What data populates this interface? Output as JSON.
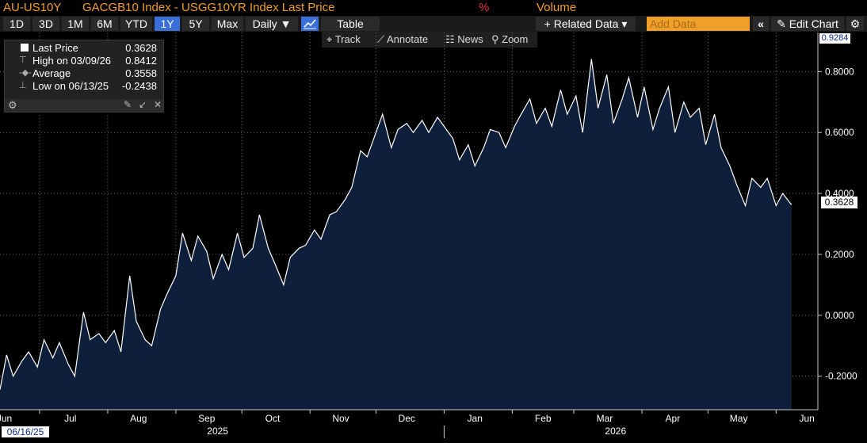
{
  "header": {
    "ticker": "AU-US10Y",
    "title": "GACGB10 Index - USGG10YR Index Last Price",
    "percent_symbol": "%",
    "volume_label": "Volume"
  },
  "toolbar": {
    "ranges": [
      "1D",
      "3D",
      "1M",
      "6M",
      "YTD",
      "1Y",
      "5Y",
      "Max"
    ],
    "active_range": "1Y",
    "frequency_label": "Daily ▼",
    "table_label": "Table",
    "related_data_label": "+ Related Data ▾",
    "add_data_placeholder": "Add Data",
    "collapse_label": "«",
    "edit_chart_label": "Edit Chart",
    "settings_icon": "gear-icon"
  },
  "toolbar2": {
    "track_label": "Track",
    "annotate_label": "Annotate",
    "news_label": "News",
    "zoom_label": "Zoom"
  },
  "legend": {
    "last_price_label": "Last Price",
    "last_price_value": "0.3628",
    "high_label": "High on 03/09/26",
    "high_value": "0.8412",
    "average_label": "Average",
    "average_value": "0.3558",
    "low_label": "Low on 06/13/25",
    "low_value": "-0.2438"
  },
  "axis_badges": {
    "top": "0.9284",
    "last": "0.3628",
    "start_date": "06/16/25"
  },
  "colors": {
    "line": "#ffffff",
    "fill": "#0d1f3a",
    "accent": "#f0a028",
    "active_button": "#3a6fd8",
    "grid": "#6a6a6a"
  },
  "chart_data": {
    "type": "area",
    "title": "GACGB10 Index - USGG10YR Index Last Price",
    "ylabel": "%",
    "ylim": [
      -0.31,
      0.9284
    ],
    "yticks": [
      -0.2,
      0.0,
      0.2,
      0.4,
      0.6,
      0.8
    ],
    "ytick_labels": [
      "-0.2000",
      "0.0000",
      "0.2000",
      "0.4000",
      "0.6000",
      "0.8000"
    ],
    "x_start": "2025-06-13",
    "x_end": "2026-06-20",
    "month_labels": [
      {
        "date": "2025-06-15",
        "label": "Jun"
      },
      {
        "date": "2025-07-15",
        "label": "Jul"
      },
      {
        "date": "2025-08-15",
        "label": "Aug"
      },
      {
        "date": "2025-09-15",
        "label": "Sep"
      },
      {
        "date": "2025-10-15",
        "label": "Oct"
      },
      {
        "date": "2025-11-15",
        "label": "Nov"
      },
      {
        "date": "2025-12-15",
        "label": "Dec"
      },
      {
        "date": "2026-01-15",
        "label": "Jan"
      },
      {
        "date": "2026-02-15",
        "label": "Feb"
      },
      {
        "date": "2026-03-15",
        "label": "Mar"
      },
      {
        "date": "2026-04-15",
        "label": "Apr"
      },
      {
        "date": "2026-05-15",
        "label": "May"
      },
      {
        "date": "2026-06-15",
        "label": "Jun"
      }
    ],
    "month_boundaries": [
      "2025-07-01",
      "2025-08-01",
      "2025-09-01",
      "2025-10-01",
      "2025-11-01",
      "2025-12-01",
      "2026-01-01",
      "2026-02-01",
      "2026-03-01",
      "2026-04-01",
      "2026-05-01",
      "2026-06-01"
    ],
    "year_labels": [
      {
        "date": "2025-09-20",
        "label": "2025"
      },
      {
        "date": "2026-03-20",
        "label": "2026"
      }
    ],
    "series": [
      {
        "values": [
          [
            "2025-06-13",
            -0.2438
          ],
          [
            "2025-06-16",
            -0.13
          ],
          [
            "2025-06-19",
            -0.2
          ],
          [
            "2025-06-23",
            -0.15
          ],
          [
            "2025-06-26",
            -0.12
          ],
          [
            "2025-06-30",
            -0.17
          ],
          [
            "2025-07-03",
            -0.08
          ],
          [
            "2025-07-07",
            -0.14
          ],
          [
            "2025-07-10",
            -0.09
          ],
          [
            "2025-07-14",
            -0.16
          ],
          [
            "2025-07-17",
            -0.2
          ],
          [
            "2025-07-21",
            0.01
          ],
          [
            "2025-07-24",
            -0.08
          ],
          [
            "2025-07-28",
            -0.06
          ],
          [
            "2025-07-31",
            -0.09
          ],
          [
            "2025-08-04",
            -0.05
          ],
          [
            "2025-08-07",
            -0.12
          ],
          [
            "2025-08-11",
            0.13
          ],
          [
            "2025-08-14",
            -0.02
          ],
          [
            "2025-08-18",
            -0.08
          ],
          [
            "2025-08-21",
            -0.1
          ],
          [
            "2025-08-25",
            0.02
          ],
          [
            "2025-08-28",
            0.07
          ],
          [
            "2025-09-01",
            0.13
          ],
          [
            "2025-09-04",
            0.27
          ],
          [
            "2025-09-08",
            0.18
          ],
          [
            "2025-09-11",
            0.26
          ],
          [
            "2025-09-15",
            0.21
          ],
          [
            "2025-09-18",
            0.12
          ],
          [
            "2025-09-22",
            0.2
          ],
          [
            "2025-09-25",
            0.15
          ],
          [
            "2025-09-29",
            0.27
          ],
          [
            "2025-10-02",
            0.19
          ],
          [
            "2025-10-06",
            0.22
          ],
          [
            "2025-10-09",
            0.33
          ],
          [
            "2025-10-13",
            0.22
          ],
          [
            "2025-10-16",
            0.17
          ],
          [
            "2025-10-20",
            0.1
          ],
          [
            "2025-10-23",
            0.19
          ],
          [
            "2025-10-27",
            0.22
          ],
          [
            "2025-10-30",
            0.23
          ],
          [
            "2025-11-03",
            0.28
          ],
          [
            "2025-11-06",
            0.25
          ],
          [
            "2025-11-10",
            0.33
          ],
          [
            "2025-11-13",
            0.34
          ],
          [
            "2025-11-17",
            0.38
          ],
          [
            "2025-11-20",
            0.42
          ],
          [
            "2025-11-24",
            0.54
          ],
          [
            "2025-11-27",
            0.52
          ],
          [
            "2025-12-01",
            0.6
          ],
          [
            "2025-12-04",
            0.66
          ],
          [
            "2025-12-08",
            0.55
          ],
          [
            "2025-12-11",
            0.61
          ],
          [
            "2025-12-15",
            0.63
          ],
          [
            "2025-12-18",
            0.6
          ],
          [
            "2025-12-22",
            0.64
          ],
          [
            "2025-12-25",
            0.6
          ],
          [
            "2025-12-29",
            0.65
          ],
          [
            "2026-01-01",
            0.62
          ],
          [
            "2026-01-05",
            0.58
          ],
          [
            "2026-01-08",
            0.51
          ],
          [
            "2026-01-12",
            0.56
          ],
          [
            "2026-01-15",
            0.49
          ],
          [
            "2026-01-19",
            0.55
          ],
          [
            "2026-01-22",
            0.61
          ],
          [
            "2026-01-26",
            0.6
          ],
          [
            "2026-01-29",
            0.55
          ],
          [
            "2026-02-02",
            0.62
          ],
          [
            "2026-02-05",
            0.66
          ],
          [
            "2026-02-09",
            0.71
          ],
          [
            "2026-02-12",
            0.63
          ],
          [
            "2026-02-16",
            0.68
          ],
          [
            "2026-02-19",
            0.62
          ],
          [
            "2026-02-23",
            0.74
          ],
          [
            "2026-02-26",
            0.66
          ],
          [
            "2026-03-02",
            0.72
          ],
          [
            "2026-03-05",
            0.6
          ],
          [
            "2026-03-09",
            0.8412
          ],
          [
            "2026-03-12",
            0.68
          ],
          [
            "2026-03-16",
            0.79
          ],
          [
            "2026-03-19",
            0.63
          ],
          [
            "2026-03-23",
            0.71
          ],
          [
            "2026-03-26",
            0.78
          ],
          [
            "2026-03-30",
            0.65
          ],
          [
            "2026-04-02",
            0.75
          ],
          [
            "2026-04-06",
            0.61
          ],
          [
            "2026-04-09",
            0.68
          ],
          [
            "2026-04-13",
            0.75
          ],
          [
            "2026-04-16",
            0.6
          ],
          [
            "2026-04-20",
            0.7
          ],
          [
            "2026-04-23",
            0.65
          ],
          [
            "2026-04-27",
            0.68
          ],
          [
            "2026-04-30",
            0.56
          ],
          [
            "2026-05-04",
            0.66
          ],
          [
            "2026-05-07",
            0.55
          ],
          [
            "2026-05-11",
            0.49
          ],
          [
            "2026-05-14",
            0.43
          ],
          [
            "2026-05-18",
            0.36
          ],
          [
            "2026-05-21",
            0.45
          ],
          [
            "2026-05-25",
            0.42
          ],
          [
            "2026-05-28",
            0.45
          ],
          [
            "2026-06-01",
            0.36
          ],
          [
            "2026-06-04",
            0.4
          ],
          [
            "2026-06-08",
            0.3628
          ]
        ]
      }
    ]
  }
}
